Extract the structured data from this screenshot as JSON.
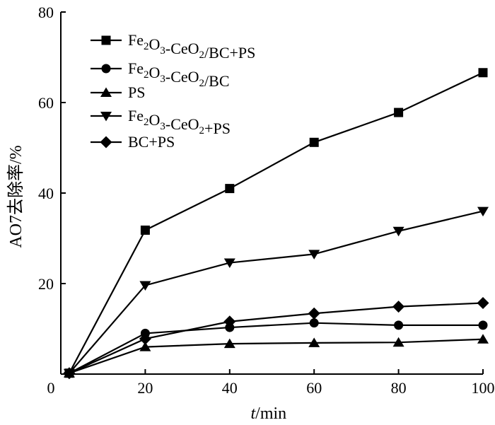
{
  "chart_data": {
    "type": "line",
    "xlabel_italic": "t",
    "xlabel_unit": "/min",
    "ylabel": "AO7去除率/%",
    "xlim": [
      0,
      100
    ],
    "ylim": [
      0,
      80
    ],
    "xticks": [
      "0",
      "20",
      "40",
      "60",
      "80",
      "100"
    ],
    "yticks": [
      "20",
      "40",
      "60",
      "80"
    ],
    "x": [
      2,
      20,
      40,
      60,
      80,
      100
    ],
    "legend_position": "top-left",
    "series": [
      {
        "name": "Fe2O3-CeO2/BC+PS",
        "marker": "square",
        "values": [
          0.2,
          31.8,
          41.0,
          51.2,
          57.8,
          66.6
        ]
      },
      {
        "name": "Fe2O3-CeO2/BC",
        "marker": "circle",
        "values": [
          0.2,
          9.0,
          10.3,
          11.3,
          10.8,
          10.8
        ]
      },
      {
        "name": "PS",
        "marker": "triangle-up",
        "values": [
          0.2,
          6.0,
          6.7,
          6.9,
          7.0,
          7.7
        ]
      },
      {
        "name": "Fe2O3-CeO2+PS",
        "marker": "triangle-down",
        "values": [
          0.2,
          19.6,
          24.6,
          26.5,
          31.6,
          36.0
        ]
      },
      {
        "name": "BC+PS",
        "marker": "diamond",
        "values": [
          0.2,
          7.8,
          11.6,
          13.4,
          14.9,
          15.7
        ]
      }
    ]
  }
}
